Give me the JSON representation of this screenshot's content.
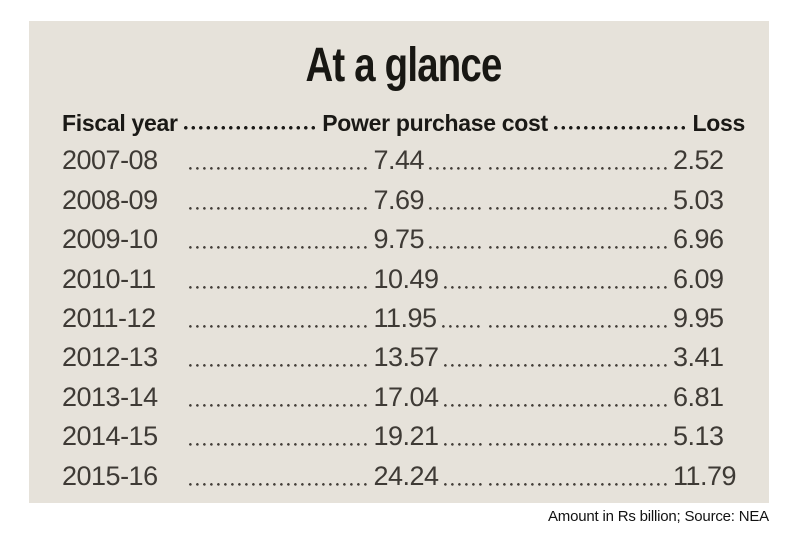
{
  "title": "At a glance",
  "header": {
    "fiscal_year": "Fiscal year",
    "power_purchase_cost": "Power purchase cost",
    "loss": "Loss"
  },
  "rows": [
    {
      "fiscal_year": "2007-08",
      "power_purchase_cost": "7.44",
      "loss": "2.52"
    },
    {
      "fiscal_year": "2008-09",
      "power_purchase_cost": "7.69",
      "loss": "5.03"
    },
    {
      "fiscal_year": "2009-10",
      "power_purchase_cost": "9.75",
      "loss": "6.96"
    },
    {
      "fiscal_year": "2010-11",
      "power_purchase_cost": "10.49",
      "loss": "6.09"
    },
    {
      "fiscal_year": "2011-12",
      "power_purchase_cost": "11.95",
      "loss": "9.95"
    },
    {
      "fiscal_year": "2012-13",
      "power_purchase_cost": "13.57",
      "loss": "3.41"
    },
    {
      "fiscal_year": "2013-14",
      "power_purchase_cost": "17.04",
      "loss": "6.81"
    },
    {
      "fiscal_year": "2014-15",
      "power_purchase_cost": "19.21",
      "loss": "5.13"
    },
    {
      "fiscal_year": "2015-16",
      "power_purchase_cost": "24.24",
      "loss": "11.79"
    }
  ],
  "footer": "Amount in Rs billion; Source: NEA",
  "colors": {
    "panel_bg": "#e6e2da",
    "heading_text": "#1a1916",
    "row_text": "#3e3a35",
    "page_bg": "#ffffff"
  },
  "chart_data": {
    "type": "table",
    "title": "At a glance",
    "columns": [
      "Fiscal year",
      "Power purchase cost",
      "Loss"
    ],
    "categories": [
      "2007-08",
      "2008-09",
      "2009-10",
      "2010-11",
      "2011-12",
      "2012-13",
      "2013-14",
      "2014-15",
      "2015-16"
    ],
    "series": [
      {
        "name": "Power purchase cost",
        "values": [
          7.44,
          7.69,
          9.75,
          10.49,
          11.95,
          13.57,
          17.04,
          19.21,
          24.24
        ]
      },
      {
        "name": "Loss",
        "values": [
          2.52,
          5.03,
          6.96,
          6.09,
          9.95,
          3.41,
          6.81,
          5.13,
          11.79
        ]
      }
    ],
    "unit": "Rs billion",
    "source": "NEA",
    "note": "Amount in Rs billion; Source: NEA"
  }
}
